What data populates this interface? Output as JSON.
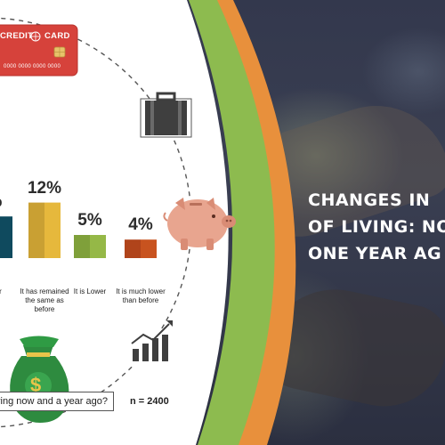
{
  "title": {
    "line1": "CHANGES IN",
    "line2": "OF LIVING: NO",
    "line3": "ONE YEAR AG"
  },
  "card": {
    "label": "CREDIT",
    "label2": "CARD",
    "number": "0000 0000 0000 0000"
  },
  "question": "living now and a year ago?",
  "sample": "n = 2400",
  "colors": {
    "green_band": "#8dbb4f",
    "orange_band": "#e8903c",
    "panel": "#ffffff",
    "circle": "#555555"
  },
  "chart_data": {
    "type": "bar",
    "categories": [
      "her",
      "It has remained the same as before",
      "It is Lower",
      "It is much lower than before"
    ],
    "values": [
      null,
      12,
      5,
      4
    ],
    "value_labels": [
      "%",
      "12%",
      "5%",
      "4%"
    ],
    "series_colors": [
      [
        "#0f4a5e",
        "#0f4a5e"
      ],
      [
        "#c9a033",
        "#e6b83c"
      ],
      [
        "#7fa03a",
        "#95b847"
      ],
      [
        "#b0441b",
        "#c8531f"
      ]
    ]
  }
}
